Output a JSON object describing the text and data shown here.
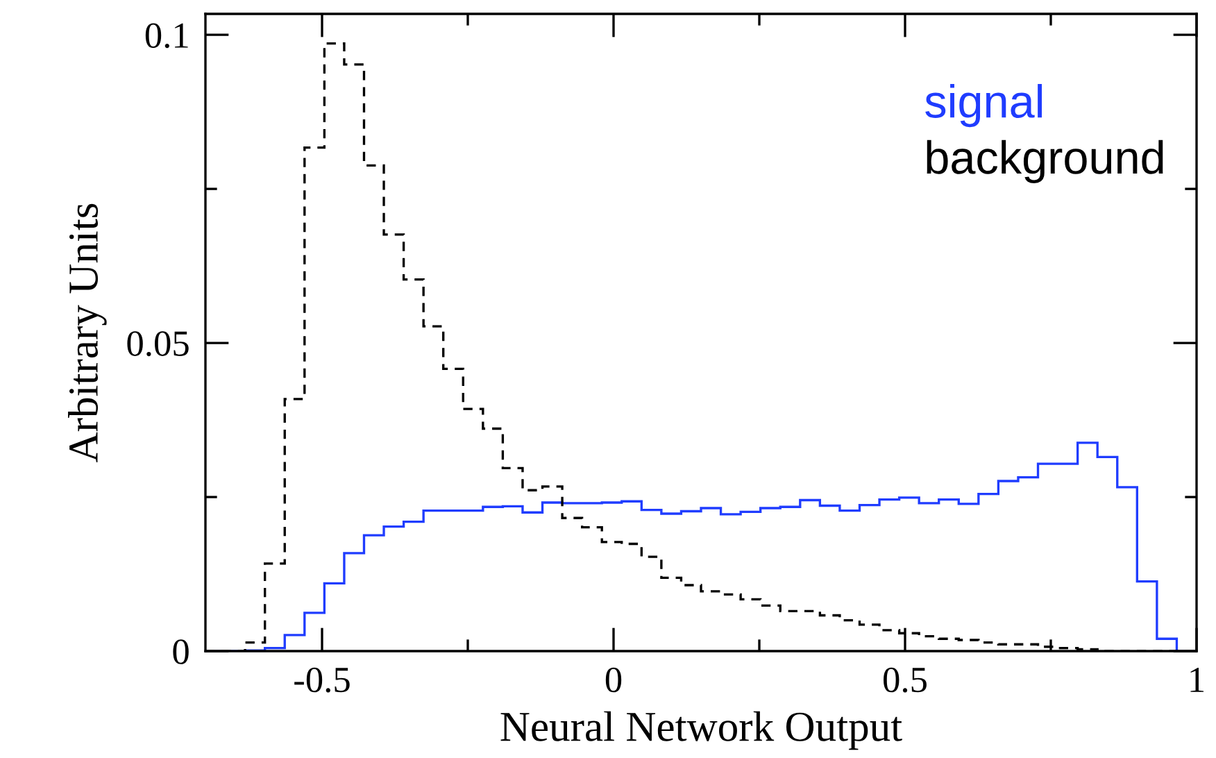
{
  "chart_data": {
    "type": "histogram",
    "xlabel": "Neural Network Output",
    "ylabel": "Arbitrary Units",
    "bins": [
      -0.7,
      -0.666,
      -0.632,
      -0.598,
      -0.564,
      -0.53,
      -0.496,
      -0.462,
      -0.428,
      -0.394,
      -0.36,
      -0.326,
      -0.292,
      -0.258,
      -0.224,
      -0.19,
      -0.156,
      -0.122,
      -0.088,
      -0.054,
      -0.02,
      0.014,
      0.048,
      0.082,
      0.116,
      0.15,
      0.184,
      0.218,
      0.252,
      0.286,
      0.32,
      0.354,
      0.388,
      0.422,
      0.456,
      0.49,
      0.524,
      0.558,
      0.592,
      0.626,
      0.66,
      0.694,
      0.728,
      0.762,
      0.796,
      0.83,
      0.864,
      0.898,
      0.932,
      0.966,
      1.0
    ],
    "series": [
      {
        "name": "signal",
        "color": "#1f3cff",
        "line_style": "solid",
        "values": [
          0,
          0,
          0.0001,
          0.0005,
          0.0026,
          0.0062,
          0.011,
          0.0159,
          0.0188,
          0.0202,
          0.021,
          0.0228,
          0.0228,
          0.0228,
          0.0234,
          0.0235,
          0.0225,
          0.0241,
          0.024,
          0.024,
          0.0241,
          0.0243,
          0.0229,
          0.0223,
          0.0227,
          0.0232,
          0.0222,
          0.0226,
          0.0232,
          0.0234,
          0.0245,
          0.0236,
          0.0228,
          0.0237,
          0.0246,
          0.0249,
          0.024,
          0.0246,
          0.0239,
          0.0255,
          0.0276,
          0.0282,
          0.0304,
          0.0304,
          0.0338,
          0.0315,
          0.0266,
          0.0113,
          0.002,
          0
        ]
      },
      {
        "name": "background",
        "color": "#000000",
        "line_style": "dashed",
        "values": [
          0,
          0,
          0.0014,
          0.0142,
          0.0409,
          0.0817,
          0.0986,
          0.0952,
          0.0788,
          0.0676,
          0.0603,
          0.0527,
          0.0458,
          0.0393,
          0.0361,
          0.0297,
          0.0261,
          0.0267,
          0.0216,
          0.0201,
          0.0177,
          0.0174,
          0.0153,
          0.0119,
          0.0107,
          0.0097,
          0.0092,
          0.0084,
          0.0074,
          0.0065,
          0.0065,
          0.0058,
          0.005,
          0.0043,
          0.0034,
          0.0029,
          0.0024,
          0.002,
          0.0018,
          0.0014,
          0.0011,
          0.0011,
          0.0007,
          0.0005,
          0.0003,
          0,
          0,
          0,
          0,
          0
        ]
      }
    ],
    "xlim": [
      -0.7,
      1.0
    ],
    "ylim": [
      0,
      0.1034
    ],
    "xticks": [
      {
        "value": -0.5,
        "label": "-0.5"
      },
      {
        "value": -0.25,
        "label": null
      },
      0,
      {
        "value": 0.25,
        "label": null
      },
      0.5,
      {
        "value": 0.75,
        "label": null
      },
      1
    ],
    "yticks": [
      0,
      {
        "value": 0.025,
        "label": null
      },
      0.05,
      {
        "value": 0.075,
        "label": null
      },
      0.1
    ],
    "grid": false,
    "legend": "top right"
  }
}
